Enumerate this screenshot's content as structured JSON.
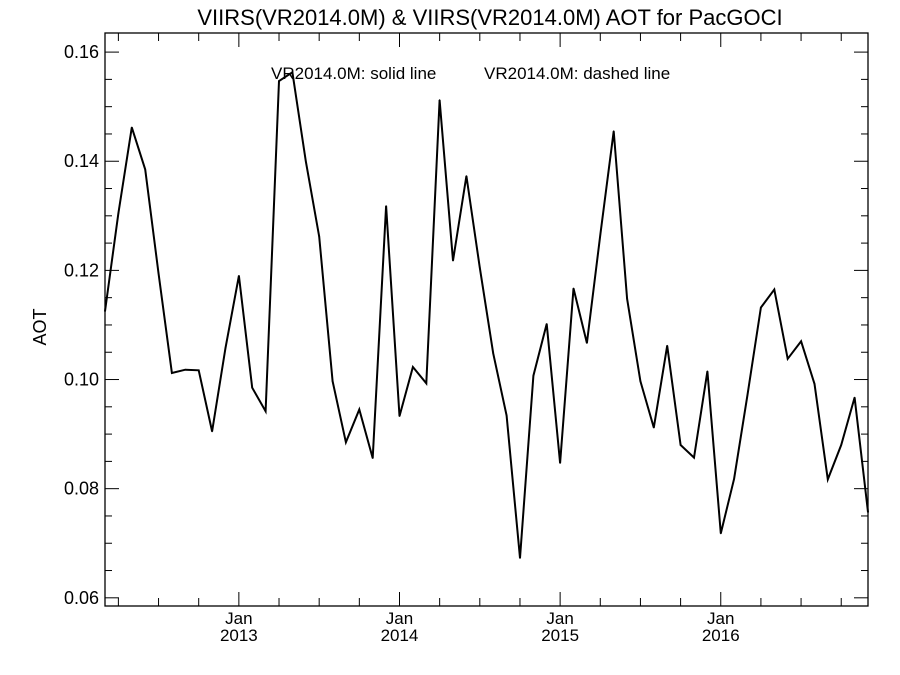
{
  "chart_data": {
    "type": "line",
    "title": "VIIRS(VR2014.0M) & VIIRS(VR2014.0M)  AOT for PacGOCI",
    "annotation_left": "VR2014.0M: solid line",
    "annotation_right": "VR2014.0M: dashed line",
    "ylabel": "AOT",
    "xlabel": "",
    "ylim": [
      0.0585,
      0.1635
    ],
    "xlim": [
      "2012-03-01",
      "2016-12-01"
    ],
    "yticks": [
      0.06,
      0.08,
      0.1,
      0.12,
      0.14,
      0.16
    ],
    "ytick_labels": [
      "0.06",
      "0.08",
      "0.10",
      "0.12",
      "0.14",
      "0.16"
    ],
    "xtick_labels": [
      {
        "month": "Jan",
        "year": "2013",
        "date": "2013-01-01"
      },
      {
        "month": "Jan",
        "year": "2014",
        "date": "2014-01-01"
      },
      {
        "month": "Jan",
        "year": "2015",
        "date": "2015-01-01"
      },
      {
        "month": "Jan",
        "year": "2016",
        "date": "2016-01-01"
      }
    ],
    "grid": false,
    "series": [
      {
        "style": "solid",
        "x": [
          "2012-03",
          "2012-04",
          "2012-05",
          "2012-06",
          "2012-07",
          "2012-08",
          "2012-09",
          "2012-10",
          "2012-11",
          "2012-12",
          "2013-01",
          "2013-02",
          "2013-03",
          "2013-04",
          "2013-05",
          "2013-06",
          "2013-07",
          "2013-08",
          "2013-09",
          "2013-10",
          "2013-11",
          "2013-12",
          "2014-01",
          "2014-02",
          "2014-03",
          "2014-04",
          "2014-05",
          "2014-06",
          "2014-07",
          "2014-08",
          "2014-09",
          "2014-10",
          "2014-11",
          "2014-12",
          "2015-01",
          "2015-02",
          "2015-03",
          "2015-04",
          "2015-05",
          "2015-06",
          "2015-07",
          "2015-08",
          "2015-09",
          "2015-10",
          "2015-11",
          "2015-12",
          "2016-01",
          "2016-02",
          "2016-03",
          "2016-04",
          "2016-05",
          "2016-06",
          "2016-07",
          "2016-08",
          "2016-09",
          "2016-10",
          "2016-11",
          "2016-12"
        ],
        "y": [
          0.1125,
          0.1305,
          0.1462,
          0.1385,
          0.1195,
          0.1012,
          0.1018,
          0.1017,
          0.0905,
          0.1058,
          0.119,
          0.0985,
          0.0942,
          0.1547,
          0.1563,
          0.14,
          0.1262,
          0.0997,
          0.0885,
          0.0945,
          0.0856,
          0.1318,
          0.0933,
          0.1023,
          0.0993,
          0.1512,
          0.1218,
          0.1373,
          0.1205,
          0.1048,
          0.0934,
          0.0673,
          0.1007,
          0.1102,
          0.0847,
          0.1167,
          0.1067,
          0.1265,
          0.1455,
          0.1148,
          0.0997,
          0.0912,
          0.1062,
          0.088,
          0.0857,
          0.1015,
          0.0718,
          0.0818,
          0.0972,
          0.1132,
          0.1165,
          0.1038,
          0.107,
          0.0992,
          0.0817,
          0.088,
          0.0967,
          0.0757
        ]
      }
    ]
  }
}
